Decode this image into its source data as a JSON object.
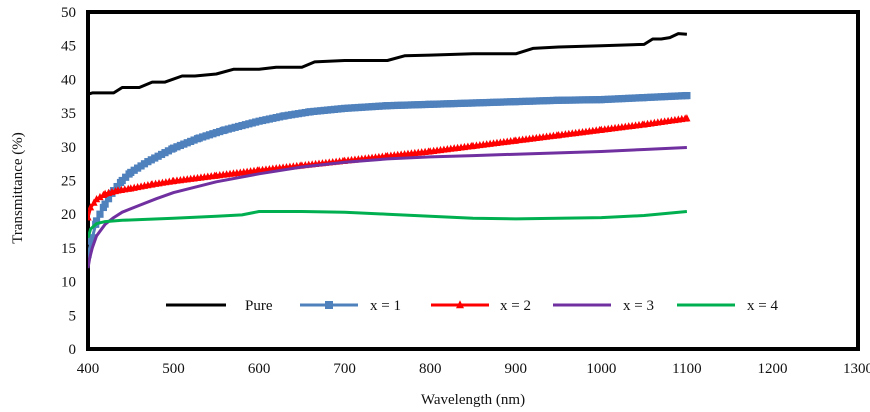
{
  "chart_data": {
    "type": "line",
    "title": "",
    "xlabel": "Wavelength (nm)",
    "ylabel": "Transmittance (%)",
    "xlim": [
      400,
      1300
    ],
    "ylim": [
      0,
      50
    ],
    "x_ticks": [
      "400",
      "500",
      "600",
      "700",
      "800",
      "900",
      "1000",
      "1100",
      "1200",
      "1300"
    ],
    "y_ticks": [
      "0",
      "5",
      "10",
      "15",
      "20",
      "25",
      "30",
      "35",
      "40",
      "45",
      "50"
    ],
    "grid": false,
    "legend_position": "bottom",
    "series": [
      {
        "name": "Pure",
        "color": "#000000",
        "marker": "none",
        "x": [
          400,
          405,
          430,
          440,
          460,
          475,
          490,
          510,
          525,
          550,
          570,
          600,
          620,
          650,
          665,
          700,
          750,
          770,
          800,
          850,
          900,
          920,
          950,
          1000,
          1050,
          1060,
          1070,
          1080,
          1090,
          1100
        ],
        "y": [
          37.8,
          38.0,
          38.0,
          38.8,
          38.8,
          39.6,
          39.6,
          40.5,
          40.5,
          40.8,
          41.5,
          41.5,
          41.8,
          41.8,
          42.6,
          42.8,
          42.8,
          43.5,
          43.6,
          43.8,
          43.8,
          44.6,
          44.8,
          45.0,
          45.2,
          46.0,
          46.0,
          46.2,
          46.8,
          46.7
        ]
      },
      {
        "name": "x = 1",
        "color": "#4f81bd",
        "marker": "square",
        "x": [
          400,
          405,
          410,
          420,
          430,
          440,
          450,
          470,
          500,
          530,
          560,
          600,
          630,
          660,
          700,
          750,
          800,
          850,
          900,
          950,
          1000,
          1050,
          1100
        ],
        "y": [
          14.0,
          16.5,
          19.0,
          21.5,
          23.5,
          25.0,
          26.2,
          27.8,
          29.8,
          31.3,
          32.5,
          33.8,
          34.6,
          35.2,
          35.7,
          36.1,
          36.3,
          36.5,
          36.7,
          36.9,
          37.0,
          37.3,
          37.6
        ]
      },
      {
        "name": "x = 2",
        "color": "#ff0000",
        "marker": "triangle",
        "x": [
          400,
          403,
          410,
          420,
          435,
          450,
          475,
          500,
          550,
          600,
          650,
          700,
          750,
          800,
          850,
          900,
          950,
          1000,
          1050,
          1100
        ],
        "y": [
          19.5,
          21.0,
          22.2,
          23.0,
          23.5,
          23.8,
          24.4,
          24.9,
          25.7,
          26.5,
          27.2,
          27.9,
          28.6,
          29.3,
          30.1,
          30.9,
          31.7,
          32.5,
          33.3,
          34.2
        ]
      },
      {
        "name": "x = 3",
        "color": "#7030a0",
        "marker": "none",
        "x": [
          400,
          402,
          405,
          410,
          420,
          430,
          440,
          460,
          480,
          500,
          550,
          600,
          650,
          700,
          750,
          800,
          850,
          900,
          950,
          1000,
          1050,
          1100
        ],
        "y": [
          12.0,
          13.5,
          15.0,
          16.8,
          18.5,
          19.5,
          20.3,
          21.3,
          22.3,
          23.2,
          24.8,
          26.0,
          27.0,
          27.7,
          28.2,
          28.5,
          28.7,
          28.9,
          29.1,
          29.3,
          29.6,
          29.9
        ]
      },
      {
        "name": "x = 4",
        "color": "#00b050",
        "marker": "none",
        "x": [
          400,
          403,
          410,
          420,
          440,
          460,
          500,
          550,
          580,
          600,
          650,
          700,
          750,
          800,
          850,
          900,
          950,
          1000,
          1050,
          1100
        ],
        "y": [
          16.5,
          17.8,
          18.6,
          18.9,
          19.1,
          19.2,
          19.4,
          19.7,
          19.9,
          20.4,
          20.4,
          20.3,
          20.0,
          19.7,
          19.4,
          19.3,
          19.4,
          19.5,
          19.8,
          20.4
        ]
      }
    ]
  }
}
